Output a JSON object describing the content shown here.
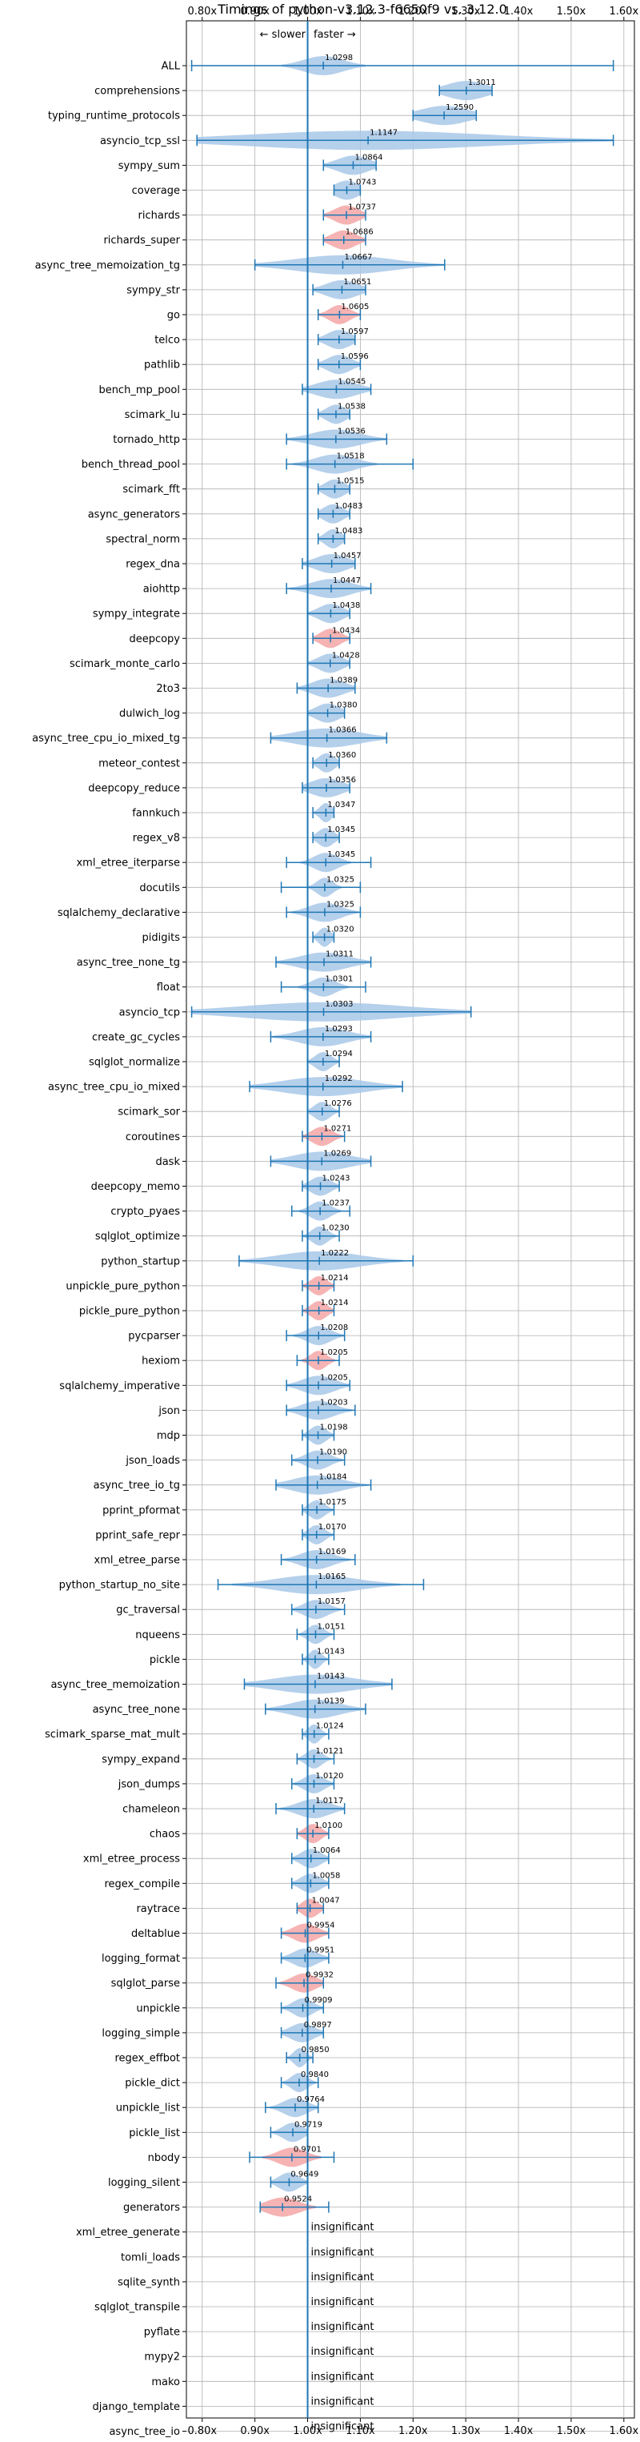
{
  "chart_data": {
    "type": "violin",
    "title": "Timings of python-v3.12.3-f6650f9 vs. 3.12.0",
    "direction_left": "← slower",
    "direction_right": "faster →",
    "x_ticks": [
      "0.80x",
      "0.90x",
      "1.00x",
      "1.10x",
      "1.20x",
      "1.30x",
      "1.40x",
      "1.50x",
      "1.60x"
    ],
    "x_tick_values": [
      0.8,
      0.9,
      1.0,
      1.1,
      1.2,
      1.3,
      1.4,
      1.5,
      1.6
    ],
    "xlim": [
      0.77,
      1.62
    ],
    "grid": true,
    "insignificant_text": "insignificant",
    "colors": {
      "faster": "#a8c8e8",
      "slower": "#f4a6a6",
      "line": "#1f77b4"
    },
    "rows": [
      {
        "name": "ALL",
        "value": 1.0298,
        "label": "1.0298",
        "min": 0.78,
        "max": 1.58,
        "spread": 0.05,
        "color": "faster"
      },
      {
        "name": "comprehensions",
        "value": 1.3011,
        "label": "1.3011",
        "min": 1.25,
        "max": 1.35,
        "spread": 0.05,
        "color": "faster"
      },
      {
        "name": "typing_runtime_protocols",
        "value": 1.259,
        "label": "1.2590",
        "min": 1.2,
        "max": 1.32,
        "spread": 0.06,
        "color": "faster"
      },
      {
        "name": "asyncio_tcp_ssl",
        "value": 1.1147,
        "label": "1.1147",
        "min": 0.79,
        "max": 1.58,
        "spread": 0.3,
        "color": "faster"
      },
      {
        "name": "sympy_sum",
        "value": 1.0864,
        "label": "1.0864",
        "min": 1.03,
        "max": 1.13,
        "spread": 0.04,
        "color": "faster"
      },
      {
        "name": "coverage",
        "value": 1.0743,
        "label": "1.0743",
        "min": 1.05,
        "max": 1.1,
        "spread": 0.03,
        "color": "faster"
      },
      {
        "name": "richards",
        "value": 1.0737,
        "label": "1.0737",
        "min": 1.03,
        "max": 1.11,
        "spread": 0.03,
        "color": "slower"
      },
      {
        "name": "richards_super",
        "value": 1.0686,
        "label": "1.0686",
        "min": 1.03,
        "max": 1.11,
        "spread": 0.03,
        "color": "slower"
      },
      {
        "name": "async_tree_memoization_tg",
        "value": 1.0667,
        "label": "1.0667",
        "min": 0.9,
        "max": 1.26,
        "spread": 0.12,
        "color": "faster"
      },
      {
        "name": "sympy_str",
        "value": 1.0651,
        "label": "1.0651",
        "min": 1.01,
        "max": 1.11,
        "spread": 0.04,
        "color": "faster"
      },
      {
        "name": "go",
        "value": 1.0605,
        "label": "1.0605",
        "min": 1.02,
        "max": 1.1,
        "spread": 0.025,
        "color": "slower"
      },
      {
        "name": "telco",
        "value": 1.0597,
        "label": "1.0597",
        "min": 1.02,
        "max": 1.09,
        "spread": 0.03,
        "color": "faster"
      },
      {
        "name": "pathlib",
        "value": 1.0596,
        "label": "1.0596",
        "min": 1.02,
        "max": 1.1,
        "spread": 0.03,
        "color": "faster"
      },
      {
        "name": "bench_mp_pool",
        "value": 1.0545,
        "label": "1.0545",
        "min": 0.99,
        "max": 1.12,
        "spread": 0.05,
        "color": "faster"
      },
      {
        "name": "scimark_lu",
        "value": 1.0538,
        "label": "1.0538",
        "min": 1.02,
        "max": 1.08,
        "spread": 0.025,
        "color": "faster"
      },
      {
        "name": "tornado_http",
        "value": 1.0536,
        "label": "1.0536",
        "min": 0.96,
        "max": 1.15,
        "spread": 0.06,
        "color": "faster"
      },
      {
        "name": "bench_thread_pool",
        "value": 1.0518,
        "label": "1.0518",
        "min": 0.96,
        "max": 1.2,
        "spread": 0.05,
        "color": "faster"
      },
      {
        "name": "scimark_fft",
        "value": 1.0515,
        "label": "1.0515",
        "min": 1.02,
        "max": 1.08,
        "spread": 0.025,
        "color": "faster"
      },
      {
        "name": "async_generators",
        "value": 1.0483,
        "label": "1.0483",
        "min": 1.02,
        "max": 1.08,
        "spread": 0.025,
        "color": "faster"
      },
      {
        "name": "spectral_norm",
        "value": 1.0483,
        "label": "1.0483",
        "min": 1.02,
        "max": 1.07,
        "spread": 0.02,
        "color": "faster"
      },
      {
        "name": "regex_dna",
        "value": 1.0457,
        "label": "1.0457",
        "min": 0.99,
        "max": 1.09,
        "spread": 0.04,
        "color": "faster"
      },
      {
        "name": "aiohttp",
        "value": 1.0447,
        "label": "1.0447",
        "min": 0.96,
        "max": 1.12,
        "spread": 0.05,
        "color": "faster"
      },
      {
        "name": "sympy_integrate",
        "value": 1.0438,
        "label": "1.0438",
        "min": 1.0,
        "max": 1.08,
        "spread": 0.03,
        "color": "faster"
      },
      {
        "name": "deepcopy",
        "value": 1.0434,
        "label": "1.0434",
        "min": 1.01,
        "max": 1.08,
        "spread": 0.025,
        "color": "slower"
      },
      {
        "name": "scimark_monte_carlo",
        "value": 1.0428,
        "label": "1.0428",
        "min": 1.0,
        "max": 1.08,
        "spread": 0.03,
        "color": "faster"
      },
      {
        "name": "2to3",
        "value": 1.0389,
        "label": "1.0389",
        "min": 0.98,
        "max": 1.09,
        "spread": 0.04,
        "color": "faster"
      },
      {
        "name": "dulwich_log",
        "value": 1.038,
        "label": "1.0380",
        "min": 1.0,
        "max": 1.07,
        "spread": 0.03,
        "color": "faster"
      },
      {
        "name": "async_tree_cpu_io_mixed_tg",
        "value": 1.0366,
        "label": "1.0366",
        "min": 0.93,
        "max": 1.15,
        "spread": 0.08,
        "color": "faster"
      },
      {
        "name": "meteor_contest",
        "value": 1.036,
        "label": "1.0360",
        "min": 1.01,
        "max": 1.06,
        "spread": 0.02,
        "color": "faster"
      },
      {
        "name": "deepcopy_reduce",
        "value": 1.0356,
        "label": "1.0356",
        "min": 0.99,
        "max": 1.08,
        "spread": 0.04,
        "color": "faster"
      },
      {
        "name": "fannkuch",
        "value": 1.0347,
        "label": "1.0347",
        "min": 1.01,
        "max": 1.05,
        "spread": 0.015,
        "color": "faster"
      },
      {
        "name": "regex_v8",
        "value": 1.0345,
        "label": "1.0345",
        "min": 1.01,
        "max": 1.06,
        "spread": 0.02,
        "color": "faster"
      },
      {
        "name": "xml_etree_iterparse",
        "value": 1.0345,
        "label": "1.0345",
        "min": 0.96,
        "max": 1.12,
        "spread": 0.03,
        "color": "faster"
      },
      {
        "name": "docutils",
        "value": 1.0325,
        "label": "1.0325",
        "min": 0.95,
        "max": 1.1,
        "spread": 0.02,
        "color": "faster"
      },
      {
        "name": "sqlalchemy_declarative",
        "value": 1.0325,
        "label": "1.0325",
        "min": 0.96,
        "max": 1.1,
        "spread": 0.04,
        "color": "faster"
      },
      {
        "name": "pidigits",
        "value": 1.032,
        "label": "1.0320",
        "min": 1.01,
        "max": 1.05,
        "spread": 0.015,
        "color": "faster"
      },
      {
        "name": "async_tree_none_tg",
        "value": 1.0311,
        "label": "1.0311",
        "min": 0.94,
        "max": 1.12,
        "spread": 0.06,
        "color": "faster"
      },
      {
        "name": "float",
        "value": 1.0301,
        "label": "1.0301",
        "min": 0.95,
        "max": 1.11,
        "spread": 0.03,
        "color": "faster"
      },
      {
        "name": "asyncio_tcp",
        "value": 1.0303,
        "label": "1.0303",
        "min": 0.78,
        "max": 1.31,
        "spread": 0.2,
        "color": "faster"
      },
      {
        "name": "create_gc_cycles",
        "value": 1.0293,
        "label": "1.0293",
        "min": 0.93,
        "max": 1.12,
        "spread": 0.06,
        "color": "faster"
      },
      {
        "name": "sqlglot_normalize",
        "value": 1.0294,
        "label": "1.0294",
        "min": 1.0,
        "max": 1.06,
        "spread": 0.02,
        "color": "faster"
      },
      {
        "name": "async_tree_cpu_io_mixed",
        "value": 1.0292,
        "label": "1.0292",
        "min": 0.89,
        "max": 1.18,
        "spread": 0.1,
        "color": "faster"
      },
      {
        "name": "scimark_sor",
        "value": 1.0276,
        "label": "1.0276",
        "min": 1.0,
        "max": 1.06,
        "spread": 0.02,
        "color": "faster"
      },
      {
        "name": "coroutines",
        "value": 1.0271,
        "label": "1.0271",
        "min": 0.99,
        "max": 1.07,
        "spread": 0.025,
        "color": "slower"
      },
      {
        "name": "dask",
        "value": 1.0269,
        "label": "1.0269",
        "min": 0.93,
        "max": 1.12,
        "spread": 0.07,
        "color": "faster"
      },
      {
        "name": "deepcopy_memo",
        "value": 1.0243,
        "label": "1.0243",
        "min": 0.99,
        "max": 1.06,
        "spread": 0.025,
        "color": "faster"
      },
      {
        "name": "crypto_pyaes",
        "value": 1.0237,
        "label": "1.0237",
        "min": 0.97,
        "max": 1.08,
        "spread": 0.025,
        "color": "faster"
      },
      {
        "name": "sqlglot_optimize",
        "value": 1.023,
        "label": "1.0230",
        "min": 0.99,
        "max": 1.06,
        "spread": 0.02,
        "color": "faster"
      },
      {
        "name": "python_startup",
        "value": 1.0222,
        "label": "1.0222",
        "min": 0.87,
        "max": 1.2,
        "spread": 0.1,
        "color": "faster"
      },
      {
        "name": "unpickle_pure_python",
        "value": 1.0214,
        "label": "1.0214",
        "min": 0.99,
        "max": 1.05,
        "spread": 0.02,
        "color": "slower"
      },
      {
        "name": "pickle_pure_python",
        "value": 1.0214,
        "label": "1.0214",
        "min": 0.99,
        "max": 1.05,
        "spread": 0.02,
        "color": "slower"
      },
      {
        "name": "pycparser",
        "value": 1.0208,
        "label": "1.0208",
        "min": 0.96,
        "max": 1.07,
        "spread": 0.03,
        "color": "faster"
      },
      {
        "name": "hexiom",
        "value": 1.0205,
        "label": "1.0205",
        "min": 0.98,
        "max": 1.06,
        "spread": 0.02,
        "color": "slower"
      },
      {
        "name": "sqlalchemy_imperative",
        "value": 1.0205,
        "label": "1.0205",
        "min": 0.96,
        "max": 1.08,
        "spread": 0.04,
        "color": "faster"
      },
      {
        "name": "json",
        "value": 1.0203,
        "label": "1.0203",
        "min": 0.96,
        "max": 1.09,
        "spread": 0.04,
        "color": "faster"
      },
      {
        "name": "mdp",
        "value": 1.0198,
        "label": "1.0198",
        "min": 0.99,
        "max": 1.05,
        "spread": 0.02,
        "color": "faster"
      },
      {
        "name": "json_loads",
        "value": 1.019,
        "label": "1.0190",
        "min": 0.97,
        "max": 1.07,
        "spread": 0.03,
        "color": "faster"
      },
      {
        "name": "async_tree_io_tg",
        "value": 1.0184,
        "label": "1.0184",
        "min": 0.94,
        "max": 1.12,
        "spread": 0.06,
        "color": "faster"
      },
      {
        "name": "pprint_pformat",
        "value": 1.0175,
        "label": "1.0175",
        "min": 0.99,
        "max": 1.05,
        "spread": 0.02,
        "color": "faster"
      },
      {
        "name": "pprint_safe_repr",
        "value": 1.017,
        "label": "1.0170",
        "min": 0.99,
        "max": 1.05,
        "spread": 0.02,
        "color": "faster"
      },
      {
        "name": "xml_etree_parse",
        "value": 1.0169,
        "label": "1.0169",
        "min": 0.95,
        "max": 1.09,
        "spread": 0.04,
        "color": "faster"
      },
      {
        "name": "python_startup_no_site",
        "value": 1.0165,
        "label": "1.0165",
        "min": 0.83,
        "max": 1.22,
        "spread": 0.1,
        "color": "faster"
      },
      {
        "name": "gc_traversal",
        "value": 1.0157,
        "label": "1.0157",
        "min": 0.97,
        "max": 1.07,
        "spread": 0.03,
        "color": "faster"
      },
      {
        "name": "nqueens",
        "value": 1.0151,
        "label": "1.0151",
        "min": 0.98,
        "max": 1.05,
        "spread": 0.02,
        "color": "faster"
      },
      {
        "name": "pickle",
        "value": 1.0143,
        "label": "1.0143",
        "min": 0.99,
        "max": 1.04,
        "spread": 0.015,
        "color": "faster"
      },
      {
        "name": "async_tree_memoization",
        "value": 1.0143,
        "label": "1.0143",
        "min": 0.88,
        "max": 1.16,
        "spread": 0.1,
        "color": "faster"
      },
      {
        "name": "async_tree_none",
        "value": 1.0139,
        "label": "1.0139",
        "min": 0.92,
        "max": 1.11,
        "spread": 0.06,
        "color": "faster"
      },
      {
        "name": "scimark_sparse_mat_mult",
        "value": 1.0124,
        "label": "1.0124",
        "min": 0.99,
        "max": 1.04,
        "spread": 0.015,
        "color": "faster"
      },
      {
        "name": "sympy_expand",
        "value": 1.0121,
        "label": "1.0121",
        "min": 0.98,
        "max": 1.05,
        "spread": 0.02,
        "color": "faster"
      },
      {
        "name": "json_dumps",
        "value": 1.012,
        "label": "1.0120",
        "min": 0.97,
        "max": 1.05,
        "spread": 0.025,
        "color": "faster"
      },
      {
        "name": "chameleon",
        "value": 1.0117,
        "label": "1.0117",
        "min": 0.94,
        "max": 1.07,
        "spread": 0.04,
        "color": "faster"
      },
      {
        "name": "chaos",
        "value": 1.01,
        "label": "1.0100",
        "min": 0.98,
        "max": 1.04,
        "spread": 0.02,
        "color": "slower"
      },
      {
        "name": "xml_etree_process",
        "value": 1.0064,
        "label": "1.0064",
        "min": 0.97,
        "max": 1.04,
        "spread": 0.025,
        "color": "faster"
      },
      {
        "name": "regex_compile",
        "value": 1.0058,
        "label": "1.0058",
        "min": 0.97,
        "max": 1.04,
        "spread": 0.025,
        "color": "faster"
      },
      {
        "name": "raytrace",
        "value": 1.0047,
        "label": "1.0047",
        "min": 0.98,
        "max": 1.03,
        "spread": 0.02,
        "color": "slower"
      },
      {
        "name": "deltablue",
        "value": 0.9954,
        "label": "0.9954",
        "min": 0.95,
        "max": 1.04,
        "spread": 0.03,
        "color": "slower"
      },
      {
        "name": "logging_format",
        "value": 0.9951,
        "label": "0.9951",
        "min": 0.95,
        "max": 1.04,
        "spread": 0.03,
        "color": "faster"
      },
      {
        "name": "sqlglot_parse",
        "value": 0.9932,
        "label": "0.9932",
        "min": 0.94,
        "max": 1.03,
        "spread": 0.03,
        "color": "slower"
      },
      {
        "name": "unpickle",
        "value": 0.9909,
        "label": "0.9909",
        "min": 0.95,
        "max": 1.03,
        "spread": 0.025,
        "color": "faster"
      },
      {
        "name": "logging_simple",
        "value": 0.9897,
        "label": "0.9897",
        "min": 0.95,
        "max": 1.03,
        "spread": 0.03,
        "color": "faster"
      },
      {
        "name": "regex_effbot",
        "value": 0.985,
        "label": "0.9850",
        "min": 0.96,
        "max": 1.01,
        "spread": 0.015,
        "color": "faster"
      },
      {
        "name": "pickle_dict",
        "value": 0.984,
        "label": "0.9840",
        "min": 0.95,
        "max": 1.02,
        "spread": 0.02,
        "color": "faster"
      },
      {
        "name": "unpickle_list",
        "value": 0.9764,
        "label": "0.9764",
        "min": 0.92,
        "max": 1.02,
        "spread": 0.03,
        "color": "faster"
      },
      {
        "name": "pickle_list",
        "value": 0.9719,
        "label": "0.9719",
        "min": 0.93,
        "max": 1.0,
        "spread": 0.025,
        "color": "faster"
      },
      {
        "name": "nbody",
        "value": 0.9701,
        "label": "0.9701",
        "min": 0.89,
        "max": 1.05,
        "spread": 0.035,
        "color": "slower"
      },
      {
        "name": "logging_silent",
        "value": 0.9649,
        "label": "0.9649",
        "min": 0.93,
        "max": 1.0,
        "spread": 0.025,
        "color": "faster"
      },
      {
        "name": "generators",
        "value": 0.9524,
        "label": "0.9524",
        "min": 0.91,
        "max": 1.04,
        "spread": 0.04,
        "color": "slower"
      },
      {
        "name": "xml_etree_generate",
        "insignificant": true
      },
      {
        "name": "tomli_loads",
        "insignificant": true
      },
      {
        "name": "sqlite_synth",
        "insignificant": true
      },
      {
        "name": "sqlglot_transpile",
        "insignificant": true
      },
      {
        "name": "pyflate",
        "insignificant": true
      },
      {
        "name": "mypy2",
        "insignificant": true
      },
      {
        "name": "mako",
        "insignificant": true
      },
      {
        "name": "django_template",
        "insignificant": true
      },
      {
        "name": "async_tree_io",
        "insignificant": true
      }
    ]
  }
}
